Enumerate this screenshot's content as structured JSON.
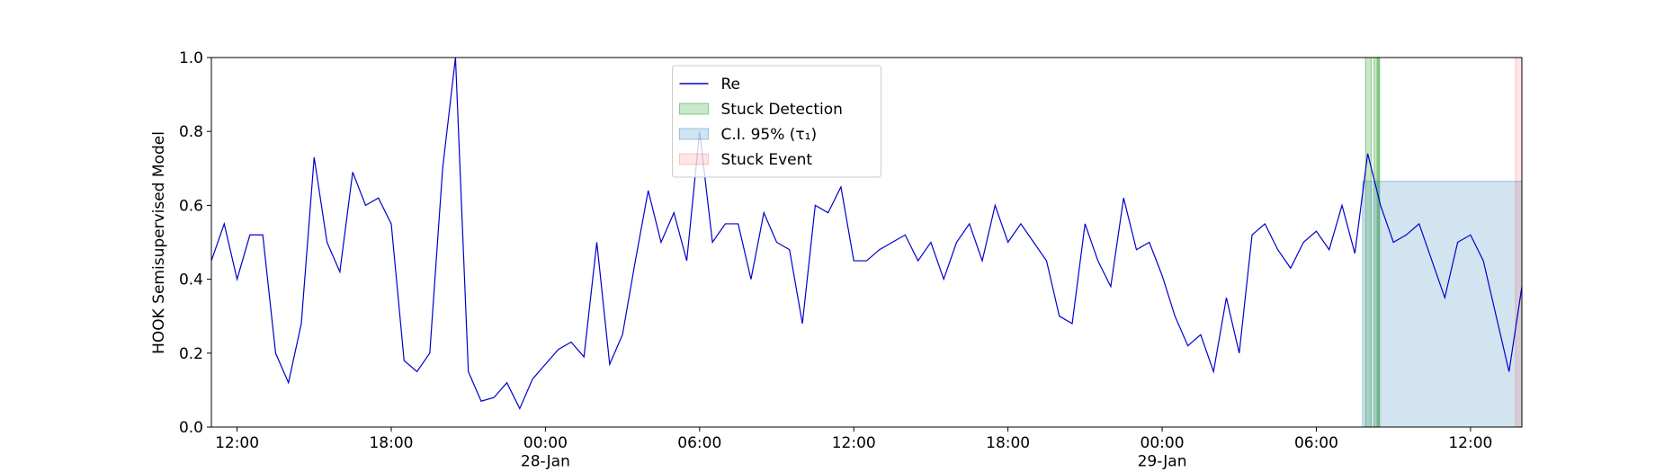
{
  "chart_data": {
    "type": "line",
    "y_label": "HOOK Semisupervised Model",
    "x": [
      "1900-01-27 11:00",
      "1900-01-27 11:30",
      "1900-01-27 12:00",
      "1900-01-27 12:30",
      "1900-01-27 13:00",
      "1900-01-27 13:30",
      "1900-01-27 14:00",
      "1900-01-27 14:30",
      "1900-01-27 15:00",
      "1900-01-27 15:30",
      "1900-01-27 16:00",
      "1900-01-27 16:30",
      "1900-01-27 17:00",
      "1900-01-27 17:30",
      "1900-01-27 18:00",
      "1900-01-27 18:30",
      "1900-01-27 19:00",
      "1900-01-27 19:30",
      "1900-01-27 20:00",
      "1900-01-27 20:30",
      "1900-01-27 21:00",
      "1900-01-27 21:30",
      "1900-01-27 22:00",
      "1900-01-27 22:30",
      "1900-01-27 23:00",
      "1900-01-27 23:30",
      "1900-01-28 00:00",
      "1900-01-28 00:30",
      "1900-01-28 01:00",
      "1900-01-28 01:30",
      "1900-01-28 02:00",
      "1900-01-28 02:30",
      "1900-01-28 03:00",
      "1900-01-28 03:30",
      "1900-01-28 04:00",
      "1900-01-28 04:30",
      "1900-01-28 05:00",
      "1900-01-28 05:30",
      "1900-01-28 06:00",
      "1900-01-28 06:30",
      "1900-01-28 07:00",
      "1900-01-28 07:30",
      "1900-01-28 08:00",
      "1900-01-28 08:30",
      "1900-01-28 09:00",
      "1900-01-28 09:30",
      "1900-01-28 10:00",
      "1900-01-28 10:30",
      "1900-01-28 11:00",
      "1900-01-28 11:30",
      "1900-01-28 12:00",
      "1900-01-28 12:30",
      "1900-01-28 13:00",
      "1900-01-28 13:30",
      "1900-01-28 14:00",
      "1900-01-28 14:30",
      "1900-01-28 15:00",
      "1900-01-28 15:30",
      "1900-01-28 16:00",
      "1900-01-28 16:30",
      "1900-01-28 17:00",
      "1900-01-28 17:30",
      "1900-01-28 18:00",
      "1900-01-28 18:30",
      "1900-01-28 19:00",
      "1900-01-28 19:30",
      "1900-01-28 20:00",
      "1900-01-28 20:30",
      "1900-01-28 21:00",
      "1900-01-28 21:30",
      "1900-01-28 22:00",
      "1900-01-28 22:30",
      "1900-01-28 23:00",
      "1900-01-28 23:30",
      "1900-01-29 00:00",
      "1900-01-29 00:30",
      "1900-01-29 01:00",
      "1900-01-29 01:30",
      "1900-01-29 02:00",
      "1900-01-29 02:30",
      "1900-01-29 03:00",
      "1900-01-29 03:30",
      "1900-01-29 04:00",
      "1900-01-29 04:30",
      "1900-01-29 05:00",
      "1900-01-29 05:30",
      "1900-01-29 06:00",
      "1900-01-29 06:30",
      "1900-01-29 07:00",
      "1900-01-29 07:30",
      "1900-01-29 08:00",
      "1900-01-29 08:30",
      "1900-01-29 09:00",
      "1900-01-29 09:30",
      "1900-01-29 10:00",
      "1900-01-29 10:30",
      "1900-01-29 11:00",
      "1900-01-29 11:30",
      "1900-01-29 12:00",
      "1900-01-29 12:30",
      "1900-01-29 13:00",
      "1900-01-29 13:30",
      "1900-01-29 14:00"
    ],
    "series": [
      {
        "name": "Re",
        "color": "#0000cc",
        "values": [
          0.45,
          0.55,
          0.4,
          0.52,
          0.52,
          0.2,
          0.12,
          0.28,
          0.73,
          0.5,
          0.42,
          0.69,
          0.6,
          0.62,
          0.55,
          0.18,
          0.15,
          0.2,
          0.7,
          1.0,
          0.15,
          0.07,
          0.08,
          0.12,
          0.05,
          0.13,
          0.17,
          0.21,
          0.23,
          0.19,
          0.5,
          0.17,
          0.25,
          0.45,
          0.64,
          0.5,
          0.58,
          0.45,
          0.8,
          0.5,
          0.55,
          0.55,
          0.4,
          0.58,
          0.5,
          0.48,
          0.28,
          0.6,
          0.58,
          0.65,
          0.45,
          0.45,
          0.48,
          0.5,
          0.52,
          0.45,
          0.5,
          0.4,
          0.5,
          0.55,
          0.45,
          0.6,
          0.5,
          0.55,
          0.5,
          0.45,
          0.3,
          0.28,
          0.55,
          0.45,
          0.38,
          0.62,
          0.48,
          0.5,
          0.41,
          0.3,
          0.22,
          0.25,
          0.15,
          0.35,
          0.2,
          0.52,
          0.55,
          0.48,
          0.43,
          0.5,
          0.53,
          0.48,
          0.6,
          0.47,
          0.74,
          0.6,
          0.5,
          0.52,
          0.55,
          0.45,
          0.35,
          0.5,
          0.52,
          0.45,
          0.3,
          0.15,
          0.38
        ]
      }
    ],
    "spans": [
      {
        "name": "Stuck Detection",
        "color": "#2ca02c",
        "alpha": 0.25,
        "ranges": [
          [
            "1900-01-29 07:55",
            "1900-01-29 08:08"
          ],
          [
            "1900-01-29 08:15",
            "1900-01-29 08:28"
          ],
          [
            "1900-01-29 08:22",
            "1900-01-29 08:26"
          ]
        ]
      },
      {
        "name": "C.I. 95% (τ₁)",
        "color": "#1f77b4",
        "alpha": 0.2,
        "ranges": [
          [
            "1900-01-29 07:48",
            "1900-01-29 14:00"
          ]
        ],
        "ylim": [
          0,
          0.665
        ]
      },
      {
        "name": "Stuck Event",
        "color": "#ff0000",
        "alpha": 0.1,
        "ranges": [
          [
            "1900-01-29 13:45",
            "1900-01-29 14:00"
          ]
        ]
      }
    ],
    "xlim": [
      "1900-01-27 11:00",
      "1900-01-29 14:00"
    ],
    "xticks": [
      {
        "value": "1900-01-27 12:00",
        "label": "12:00"
      },
      {
        "value": "1900-01-27 18:00",
        "label": "18:00"
      },
      {
        "value": "1900-01-28 00:00",
        "label": "00:00\n28-Jan\n1900"
      },
      {
        "value": "1900-01-28 06:00",
        "label": "06:00"
      },
      {
        "value": "1900-01-28 12:00",
        "label": "12:00"
      },
      {
        "value": "1900-01-28 18:00",
        "label": "18:00"
      },
      {
        "value": "1900-01-29 00:00",
        "label": "00:00\n29-Jan"
      },
      {
        "value": "1900-01-29 06:00",
        "label": "06:00"
      },
      {
        "value": "1900-01-29 12:00",
        "label": "12:00"
      }
    ],
    "ylim": [
      0,
      1
    ],
    "yticks": [
      {
        "value": 0,
        "label": "0.0"
      },
      0.2,
      0.4,
      0.6,
      0.8,
      {
        "value": 1,
        "label": "1.0"
      }
    ],
    "legend": "upper center"
  }
}
